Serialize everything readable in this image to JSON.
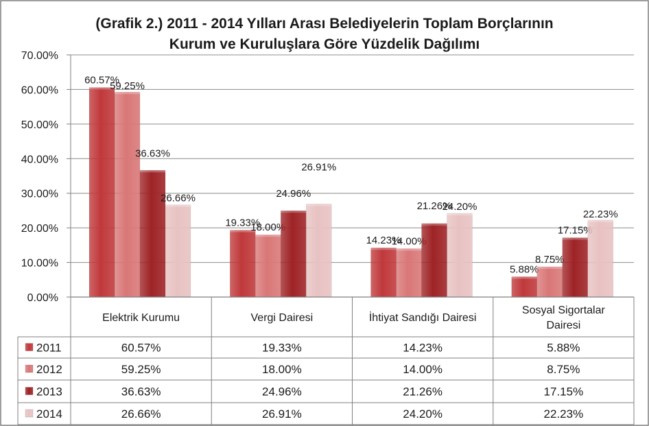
{
  "chart_data": {
    "type": "bar",
    "title_lines": [
      "(Grafik 2.)  2011 - 2014 Yılları Arası Belediyelerin Toplam Borçlarının",
      "Kurum ve Kuruluşlara Göre Yüzdelik Dağılımı"
    ],
    "categories": [
      [
        "Elektrik Kurumu"
      ],
      [
        "Vergi Dairesi"
      ],
      [
        "İhtiyat Sandığı Dairesi"
      ],
      [
        "Sosyal Sigortalar",
        "Dairesi"
      ]
    ],
    "series": [
      {
        "name": "2011",
        "color": "#c0393b",
        "values": [
          60.57,
          19.33,
          14.23,
          5.88
        ],
        "labels": [
          "60.57%",
          "19.33%",
          "14.23%",
          "5.88%"
        ]
      },
      {
        "name": "2012",
        "color": "#d97777",
        "values": [
          59.25,
          18.0,
          14.0,
          8.75
        ],
        "labels": [
          "59.25%",
          "18.00%",
          "14.00%",
          "8.75%"
        ]
      },
      {
        "name": "2013",
        "color": "#9e2326",
        "values": [
          36.63,
          24.96,
          21.26,
          17.15
        ],
        "labels": [
          "36.63%",
          "24.96%",
          "21.26%",
          "17.15%"
        ]
      },
      {
        "name": "2014",
        "color": "#e8c2c2",
        "values": [
          26.66,
          26.91,
          24.2,
          22.23
        ],
        "labels": [
          "26.66%",
          "26.91%",
          "24.20%",
          "22.23%"
        ]
      }
    ],
    "y_ticks": [
      "0.00%",
      "10.00%",
      "20.00%",
      "30.00%",
      "40.00%",
      "50.00%",
      "60.00%",
      "70.00%"
    ],
    "ylim": [
      0,
      70
    ],
    "xlabel": "",
    "ylabel": "",
    "grid": true,
    "legend": "data-table"
  }
}
